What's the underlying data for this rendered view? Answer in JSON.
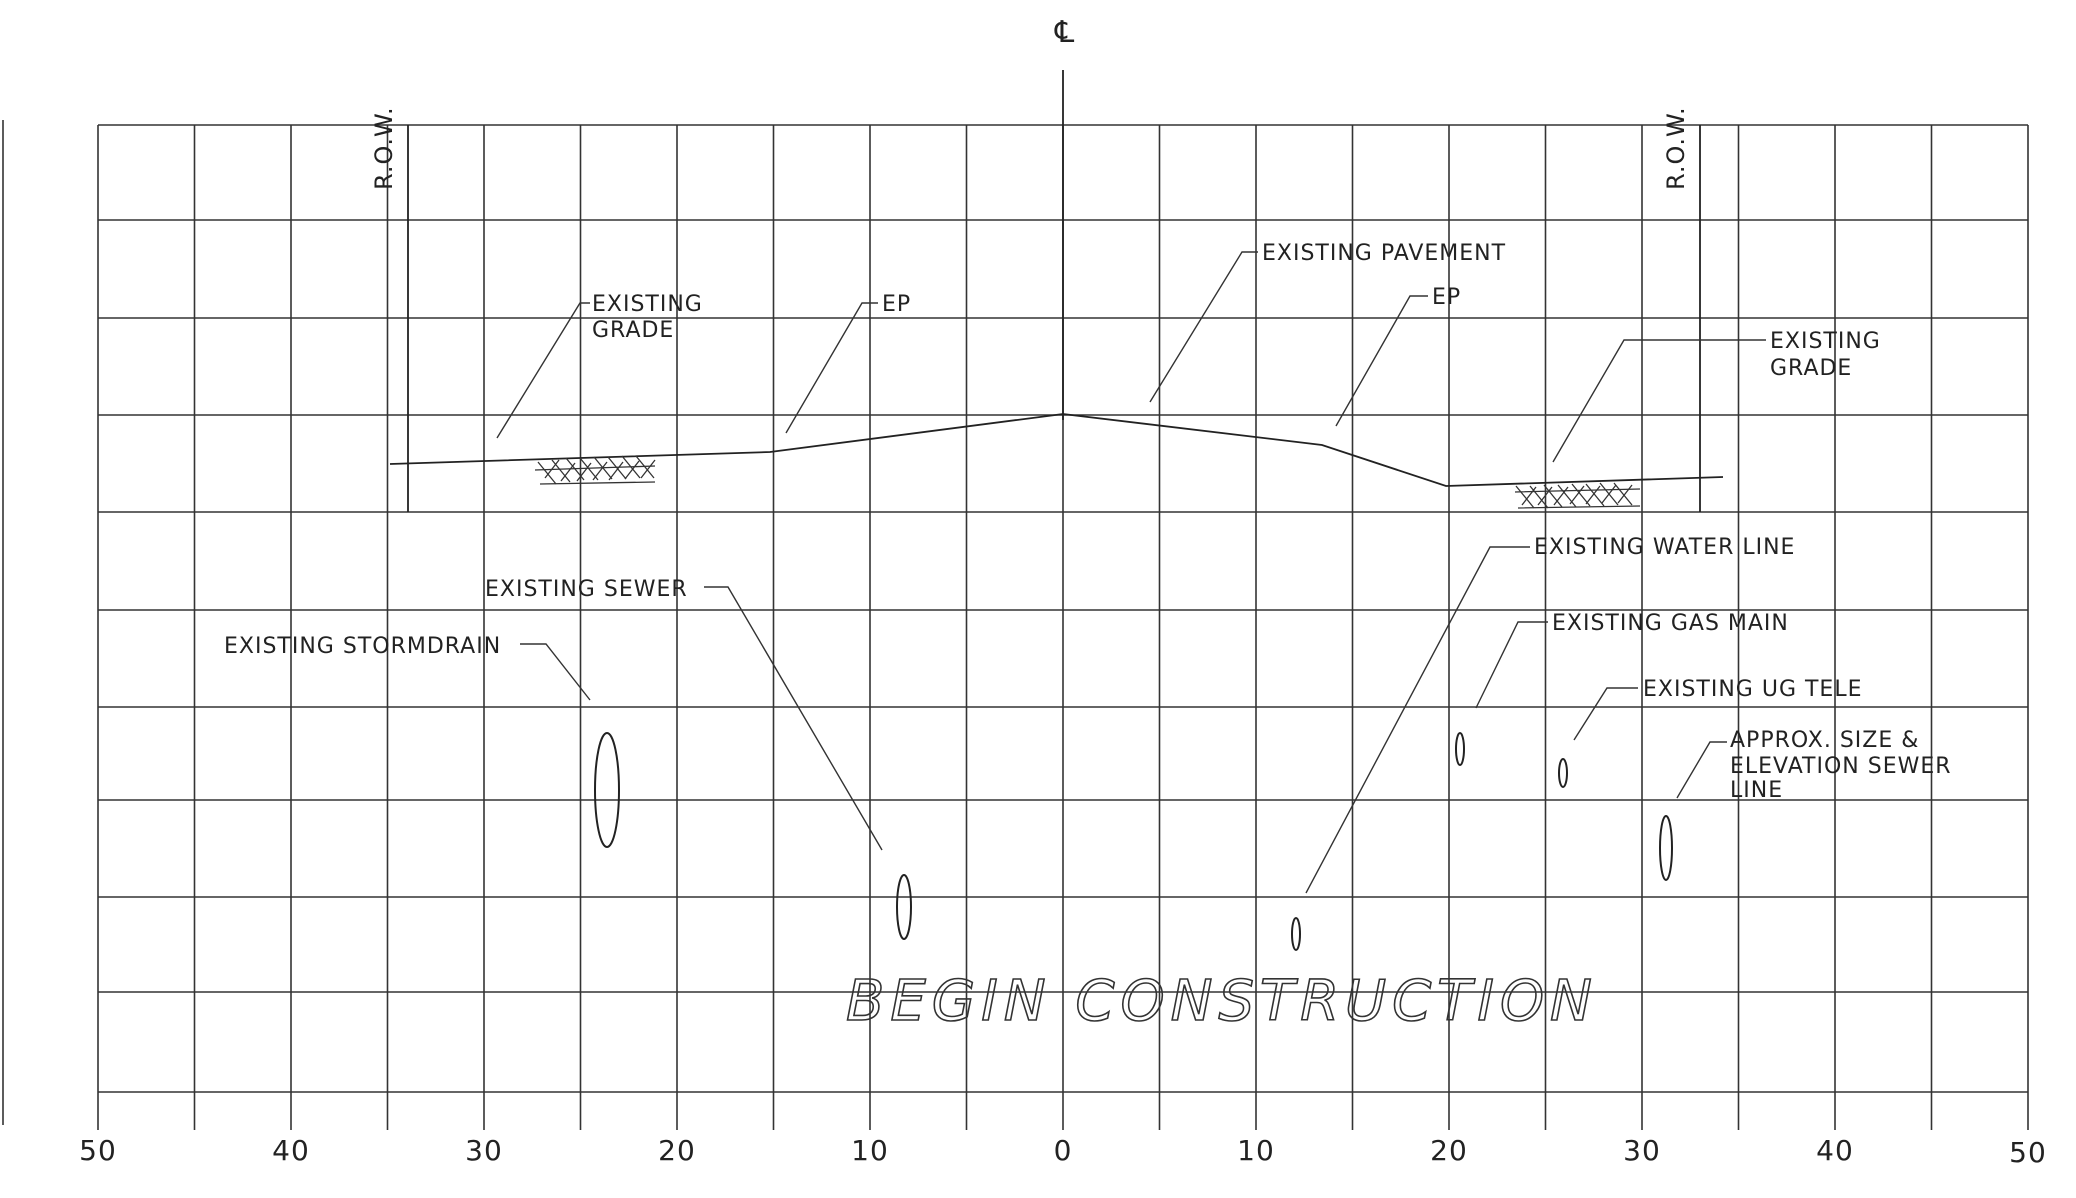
{
  "centerline_symbol": "℄",
  "axis": {
    "ticks_left": [
      "50",
      "40",
      "30",
      "20",
      "10",
      "0"
    ],
    "ticks_right": [
      "10",
      "20",
      "30",
      "40",
      "50"
    ]
  },
  "row": {
    "left": "R.O.W.",
    "right": "R.O.W."
  },
  "labels": {
    "existing_grade_left_1": "EXISTING",
    "existing_grade_left_2": "GRADE",
    "ep_left": "EP",
    "existing_pavement": "EXISTING PAVEMENT",
    "ep_right": "EP",
    "existing_grade_right_1": "EXISTING",
    "existing_grade_right_2": "GRADE",
    "existing_sewer": "EXISTING SEWER",
    "existing_stormdrain": "EXISTING STORMDRAIN",
    "existing_water_line": "EXISTING WATER LINE",
    "existing_gas_main": "EXISTING GAS MAIN",
    "existing_ug_tele": "EXISTING UG TELE",
    "approx_1": "APPROX. SIZE &",
    "approx_2": "ELEVATION SEWER",
    "approx_3": "LINE"
  },
  "title": "BEGIN CONSTRUCTION"
}
